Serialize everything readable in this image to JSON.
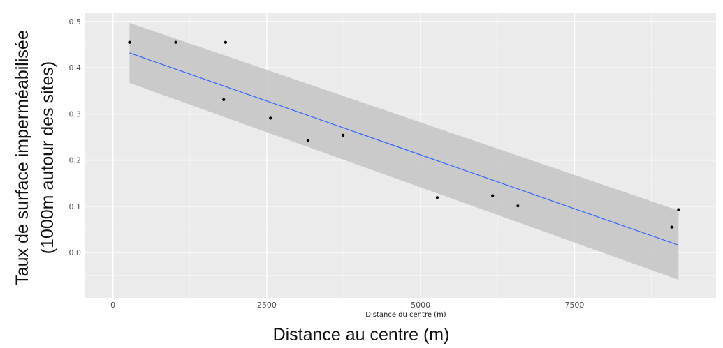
{
  "chart_data": {
    "type": "scatter",
    "xlabel_inner": "Distance du centre (m)",
    "xlabel": "Distance au centre (m)",
    "ylabel_line1": "Taux de surface imperméabilisée",
    "ylabel_line2": "(1000m autour des sites)",
    "xlim": [
      -450,
      9800
    ],
    "ylim": [
      -0.098,
      0.518
    ],
    "xticks": [
      0,
      2500,
      5000,
      7500
    ],
    "xtick_labels": [
      "0",
      "2500",
      "5000",
      "7500"
    ],
    "yticks": [
      0.0,
      0.1,
      0.2,
      0.3,
      0.4,
      0.5
    ],
    "ytick_labels": [
      "0.0",
      "0.1",
      "0.2",
      "0.3",
      "0.4",
      "0.5"
    ],
    "grid": true,
    "points": [
      {
        "x": 270,
        "y": 0.455
      },
      {
        "x": 1020,
        "y": 0.455
      },
      {
        "x": 1830,
        "y": 0.455
      },
      {
        "x": 1800,
        "y": 0.331
      },
      {
        "x": 2560,
        "y": 0.291
      },
      {
        "x": 3170,
        "y": 0.242
      },
      {
        "x": 3740,
        "y": 0.254
      },
      {
        "x": 5270,
        "y": 0.119
      },
      {
        "x": 6170,
        "y": 0.123
      },
      {
        "x": 6580,
        "y": 0.101
      },
      {
        "x": 9080,
        "y": 0.055
      },
      {
        "x": 9190,
        "y": 0.093
      }
    ],
    "fit_line": {
      "x": [
        270,
        9190
      ],
      "y": [
        0.432,
        0.016
      ]
    },
    "confidence_band": {
      "x": [
        270,
        9190
      ],
      "upper": [
        0.497,
        0.091
      ],
      "lower": [
        0.367,
        -0.059
      ]
    },
    "colors": {
      "panel": "#ebebeb",
      "grid_major": "#ffffff",
      "grid_minor": "#f5f5f5",
      "band": "#c4c4c4",
      "line": "#3366ff",
      "point": "#000000"
    }
  }
}
